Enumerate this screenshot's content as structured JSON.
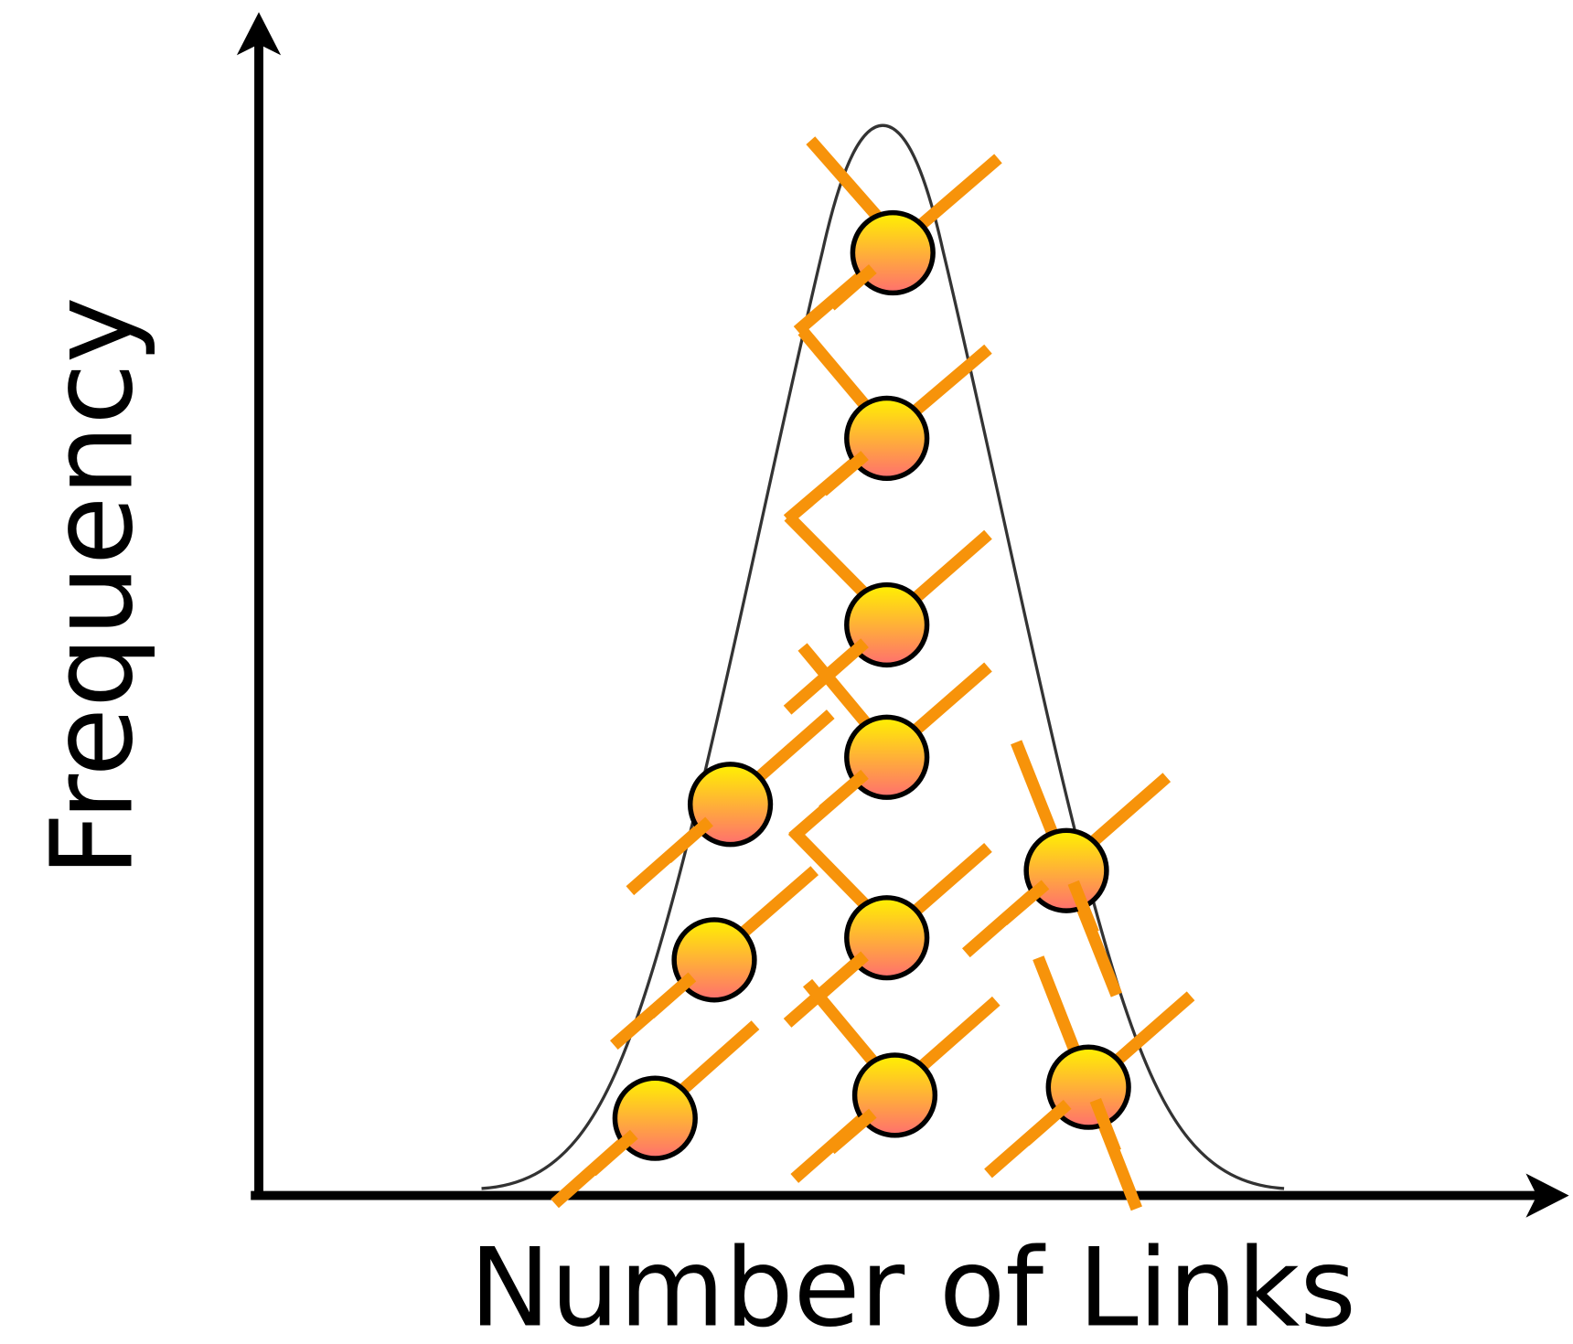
{
  "y_axis": {
    "label": "Frequency"
  },
  "x_axis": {
    "label": "Number of Links"
  }
}
